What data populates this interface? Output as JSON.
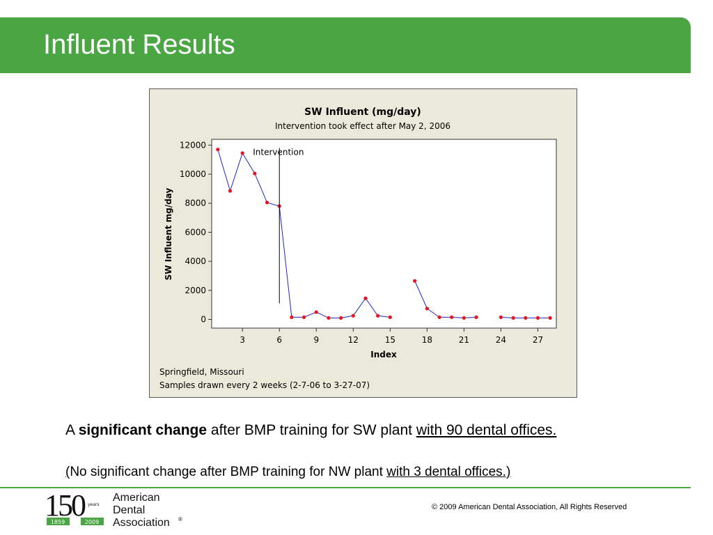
{
  "slide": {
    "title": "Influent Results",
    "caption_line1_a": "A ",
    "caption_line1_bold": "significant change",
    "caption_line1_b": " after BMP training for SW plant ",
    "caption_line1_underlined": "with 90 dental offices.",
    "caption_line2_paren": "(",
    "caption_line2_a": "No significant change after BMP training for NW plant ",
    "caption_line2_underlined": "with 3 dental offices.)",
    "copyright": "©  2009 American Dental Association,  All Rights Reserved"
  },
  "logo": {
    "number": "150",
    "years": "years",
    "year_start": "1859",
    "year_end": "2009",
    "name_line1": "American",
    "name_line2": "Dental",
    "name_line3": "Association",
    "registered": "®"
  },
  "chart_data": {
    "type": "line",
    "title": "SW Influent (mg/day)",
    "subtitle": "Intervention took effect after May 2, 2006",
    "xlabel": "Index",
    "ylabel": "SW Influent  mg/day",
    "xlim": [
      0.5,
      28.5
    ],
    "ylim": [
      -600,
      12400
    ],
    "x_ticks": [
      3,
      6,
      9,
      12,
      15,
      18,
      21,
      24,
      27
    ],
    "y_ticks": [
      0,
      2000,
      4000,
      6000,
      8000,
      10000,
      12000
    ],
    "grid": false,
    "legend": "none",
    "series": [
      {
        "x": [
          1,
          2,
          3,
          4,
          5,
          6,
          7,
          8,
          9,
          10,
          11,
          12,
          13,
          14,
          15,
          16,
          17,
          18,
          19,
          20,
          21,
          22,
          23,
          24,
          25,
          26,
          27,
          28
        ],
        "values": [
          11700,
          8850,
          11450,
          10050,
          8050,
          7800,
          150,
          150,
          500,
          100,
          100,
          250,
          1450,
          250,
          150,
          null,
          2650,
          750,
          150,
          150,
          100,
          150,
          null,
          150,
          100,
          100,
          100,
          100
        ],
        "line_color": "#2222cc",
        "marker_color": "#e8141e"
      }
    ],
    "annotations": [
      {
        "text": "Intervention",
        "x": 6,
        "y_top": 12000,
        "y_bottom": 1100
      }
    ],
    "footnote_line1": "Springfield, Missouri",
    "footnote_line2": "Samples drawn every 2 weeks (2-7-06 to 3-27-07)",
    "colors": {
      "frame_bg": "#ebe9d9",
      "plot_bg": "#ffffff"
    }
  },
  "theme": {
    "accent": "#4aa543"
  }
}
